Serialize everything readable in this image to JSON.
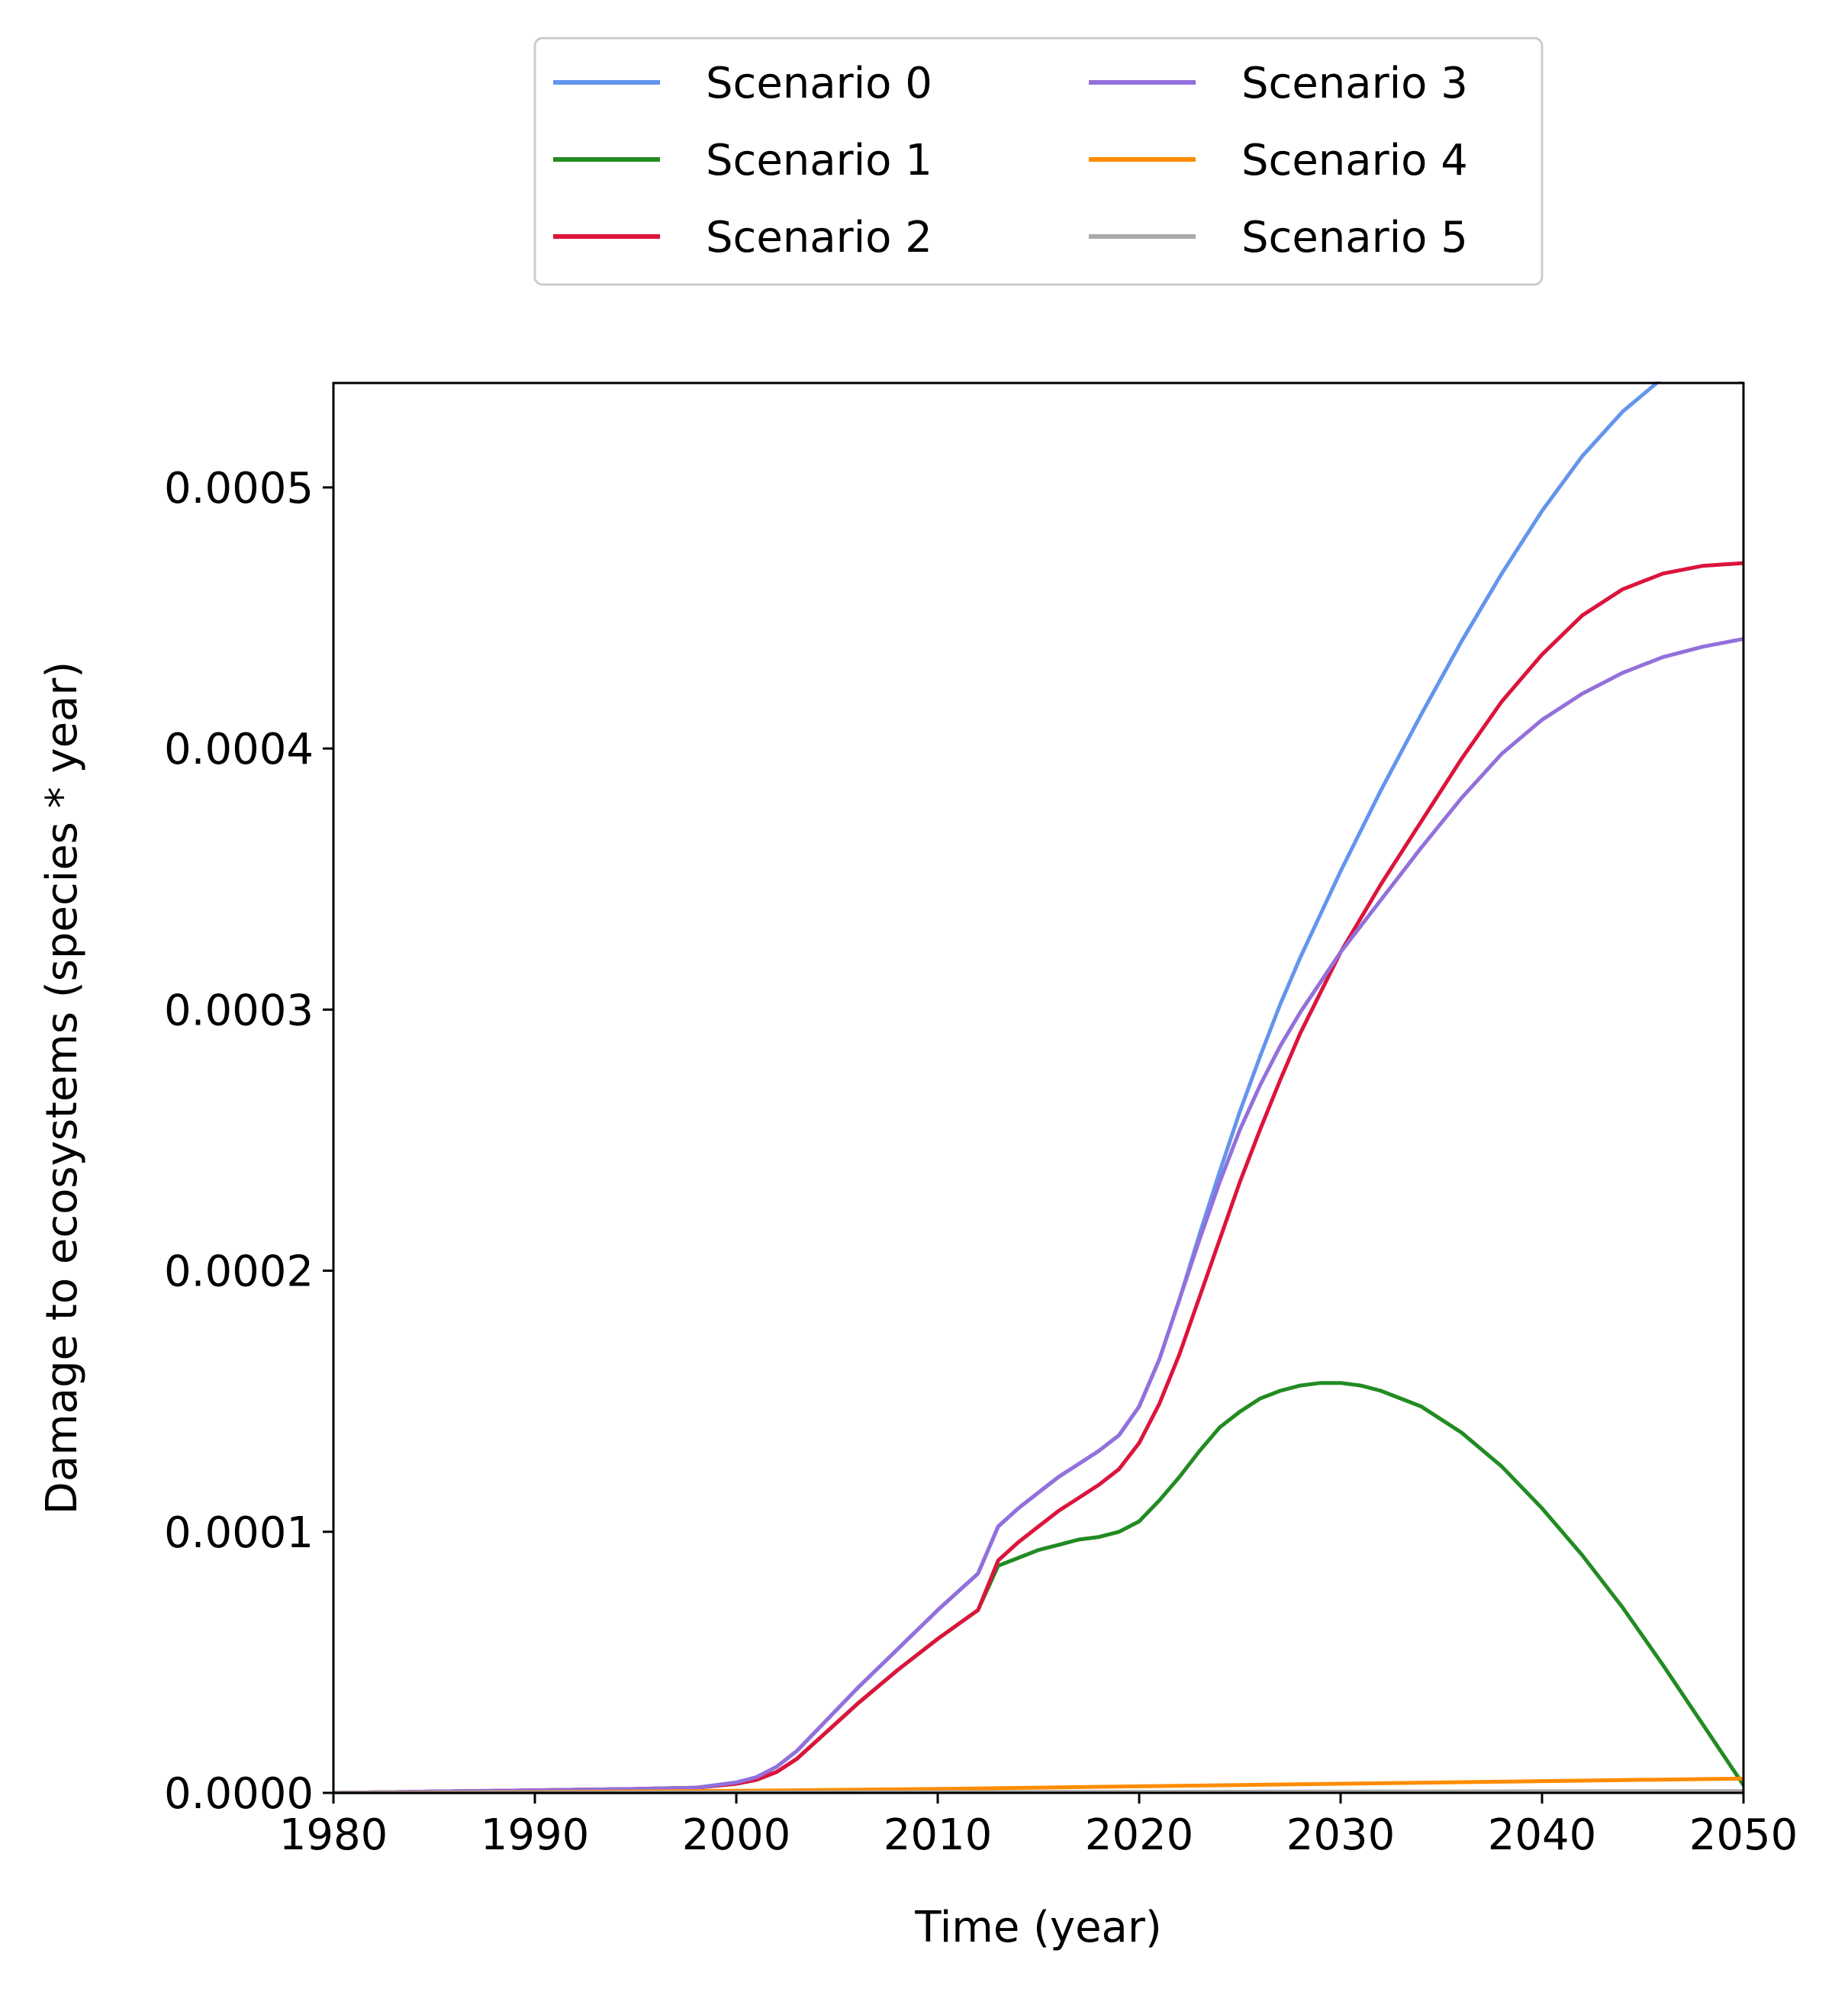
{
  "chart_data": {
    "type": "line",
    "xlabel": "Time (year)",
    "ylabel": "Damage to ecosystems (species * year)",
    "xlim": [
      1980,
      2050
    ],
    "ylim": [
      0,
      0.00054
    ],
    "xticks": [
      1980,
      1990,
      2000,
      2010,
      2020,
      2030,
      2040,
      2050
    ],
    "xtick_labels": [
      "1980",
      "1990",
      "2000",
      "2010",
      "2020",
      "2030",
      "2040",
      "2050"
    ],
    "yticks": [
      0,
      0.0001,
      0.0002,
      0.0003,
      0.0004,
      0.0005
    ],
    "ytick_labels": [
      "0.0000",
      "0.0001",
      "0.0002",
      "0.0003",
      "0.0004",
      "0.0005"
    ],
    "grid": false,
    "legend_position": "top-center-outside",
    "legend_columns": 2,
    "series": [
      {
        "name": "Scenario 0",
        "color": "#6495ED",
        "x": [
          1980,
          1985,
          1990,
          1995,
          1998,
          2000,
          2001,
          2002,
          2003,
          2004,
          2005,
          2006,
          2008,
          2010,
          2012,
          2013,
          2014,
          2015,
          2016,
          2017,
          2018,
          2019,
          2020,
          2021,
          2022,
          2023,
          2024,
          2025,
          2026,
          2027,
          2028,
          2030,
          2032,
          2034,
          2036,
          2038,
          2040,
          2042,
          2044,
          2046,
          2048,
          2050
        ],
        "y": [
          0,
          5e-07,
          1e-06,
          1.5e-06,
          2e-06,
          4e-06,
          6e-06,
          1e-05,
          1.6e-05,
          2.4e-05,
          3.2e-05,
          4e-05,
          5.5e-05,
          7e-05,
          8.4e-05,
          0.000102,
          0.000109,
          0.000115,
          0.000121,
          0.000126,
          0.000131,
          0.000137,
          0.000148,
          0.000166,
          0.000189,
          0.000214,
          0.000238,
          0.000261,
          0.000282,
          0.000302,
          0.00032,
          0.000353,
          0.000384,
          0.000413,
          0.000441,
          0.000467,
          0.000491,
          0.000512,
          0.000529,
          0.000542,
          0.000551,
          0.00054
        ]
      },
      {
        "name": "Scenario 1",
        "color": "#228B22",
        "x": [
          1980,
          1985,
          1990,
          1995,
          1998,
          2000,
          2001,
          2002,
          2003,
          2004,
          2005,
          2006,
          2008,
          2010,
          2012,
          2013,
          2014,
          2015,
          2016,
          2017,
          2018,
          2019,
          2020,
          2021,
          2022,
          2023,
          2024,
          2025,
          2026,
          2027,
          2028,
          2029,
          2030,
          2031,
          2032,
          2034,
          2036,
          2038,
          2040,
          2042,
          2044,
          2046,
          2048,
          2050
        ],
        "y": [
          0,
          5e-07,
          1e-06,
          1.5e-06,
          2e-06,
          3.5e-06,
          5e-06,
          8e-06,
          1.3e-05,
          2e-05,
          2.7e-05,
          3.4e-05,
          4.7e-05,
          5.9e-05,
          7e-05,
          8.7e-05,
          9e-05,
          9.3e-05,
          9.5e-05,
          9.7e-05,
          9.8e-05,
          0.0001,
          0.000104,
          0.000112,
          0.000121,
          0.000131,
          0.00014,
          0.000146,
          0.000151,
          0.000154,
          0.000156,
          0.000157,
          0.000157,
          0.000156,
          0.000154,
          0.000148,
          0.000138,
          0.000125,
          0.000109,
          9.1e-05,
          7.1e-05,
          4.9e-05,
          2.6e-05,
          3e-06
        ]
      },
      {
        "name": "Scenario 2",
        "color": "#DC143C",
        "x": [
          1980,
          1985,
          1990,
          1995,
          1998,
          2000,
          2001,
          2002,
          2003,
          2004,
          2005,
          2006,
          2008,
          2010,
          2012,
          2013,
          2014,
          2015,
          2016,
          2017,
          2018,
          2019,
          2020,
          2021,
          2022,
          2023,
          2024,
          2025,
          2026,
          2027,
          2028,
          2030,
          2032,
          2034,
          2036,
          2038,
          2040,
          2042,
          2044,
          2046,
          2048,
          2050
        ],
        "y": [
          0,
          5e-07,
          1e-06,
          1.5e-06,
          2e-06,
          3.5e-06,
          5e-06,
          8e-06,
          1.3e-05,
          2e-05,
          2.7e-05,
          3.4e-05,
          4.7e-05,
          5.9e-05,
          7e-05,
          8.9e-05,
          9.6e-05,
          0.000102,
          0.000108,
          0.000113,
          0.000118,
          0.000124,
          0.000134,
          0.000149,
          0.000168,
          0.00019,
          0.000212,
          0.000234,
          0.000254,
          0.000273,
          0.000291,
          0.000322,
          0.000348,
          0.000372,
          0.000396,
          0.000418,
          0.000436,
          0.000451,
          0.000461,
          0.000467,
          0.00047,
          0.000471
        ]
      },
      {
        "name": "Scenario 3",
        "color": "#9370DB",
        "x": [
          1980,
          1985,
          1990,
          1995,
          1998,
          2000,
          2001,
          2002,
          2003,
          2004,
          2005,
          2006,
          2008,
          2010,
          2012,
          2013,
          2014,
          2015,
          2016,
          2017,
          2018,
          2019,
          2020,
          2021,
          2022,
          2023,
          2024,
          2025,
          2026,
          2027,
          2028,
          2030,
          2032,
          2034,
          2036,
          2038,
          2040,
          2042,
          2044,
          2046,
          2048,
          2050
        ],
        "y": [
          0,
          5e-07,
          1e-06,
          1.5e-06,
          2e-06,
          4e-06,
          6e-06,
          1e-05,
          1.6e-05,
          2.4e-05,
          3.2e-05,
          4e-05,
          5.5e-05,
          7e-05,
          8.4e-05,
          0.000102,
          0.000109,
          0.000115,
          0.000121,
          0.000126,
          0.000131,
          0.000137,
          0.000148,
          0.000166,
          0.000189,
          0.000212,
          0.000234,
          0.000254,
          0.000271,
          0.000286,
          0.000299,
          0.000322,
          0.000342,
          0.000362,
          0.000381,
          0.000398,
          0.000411,
          0.000421,
          0.000429,
          0.000435,
          0.000439,
          0.000442
        ]
      },
      {
        "name": "Scenario 4",
        "color": "#FF8C00",
        "x": [
          1980,
          1990,
          2000,
          2010,
          2020,
          2030,
          2040,
          2050
        ],
        "y": [
          0,
          3e-07,
          8e-07,
          1.5e-06,
          2.5e-06,
          3.5e-06,
          4.5e-06,
          5.5e-06
        ]
      },
      {
        "name": "Scenario 5",
        "color": "#A9A9A9",
        "x": [
          1980,
          1990,
          2000,
          2010,
          2020,
          2030,
          2040,
          2050
        ],
        "y": [
          0,
          1e-07,
          2e-07,
          3e-07,
          4e-07,
          5e-07,
          6e-07,
          7e-07
        ]
      }
    ]
  }
}
